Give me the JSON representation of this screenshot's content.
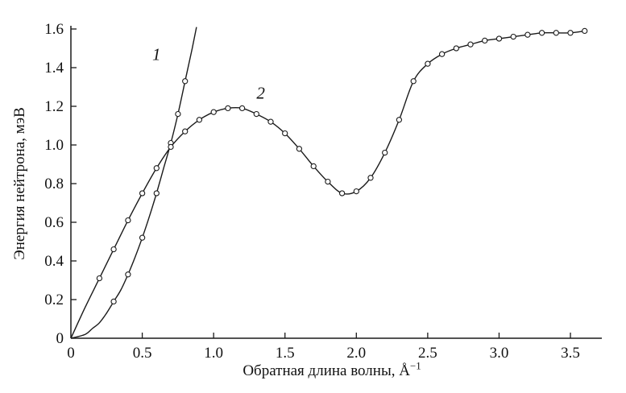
{
  "page": {
    "background": "#ffffff"
  },
  "chart_data": {
    "type": "line",
    "title": "",
    "xlabel": "Обратная длина волны, Å",
    "xlabel_sup": "−1",
    "ylabel": "Энергия нейтрона, мэВ",
    "xlim": [
      0,
      3.72
    ],
    "ylim": [
      0,
      1.6
    ],
    "grid": false,
    "legend": "none",
    "line_color": "#1a1a1a",
    "marker_style": "open-circle",
    "xticks": {
      "values": [
        0,
        0.5,
        1.0,
        1.5,
        2.0,
        2.5,
        3.0,
        3.5
      ],
      "labels": [
        "0",
        "0.5",
        "1.0",
        "1.5",
        "2.0",
        "2.5",
        "3.0",
        "3.5"
      ]
    },
    "yticks": {
      "values": [
        0,
        0.2,
        0.4,
        0.6,
        0.8,
        1.0,
        1.2,
        1.4,
        1.6
      ],
      "labels": [
        "0",
        "0.2",
        "0.4",
        "0.6",
        "0.8",
        "1.0",
        "1.2",
        "1.4",
        "1.6"
      ]
    },
    "series": [
      {
        "name": "1",
        "line": [
          [
            0,
            0
          ],
          [
            0.1,
            0.02
          ],
          [
            0.15,
            0.05
          ],
          [
            0.2,
            0.08
          ],
          [
            0.25,
            0.13
          ],
          [
            0.3,
            0.19
          ],
          [
            0.35,
            0.25
          ],
          [
            0.4,
            0.33
          ],
          [
            0.45,
            0.42
          ],
          [
            0.5,
            0.52
          ],
          [
            0.55,
            0.63
          ],
          [
            0.6,
            0.75
          ],
          [
            0.65,
            0.88
          ],
          [
            0.7,
            1.01
          ],
          [
            0.75,
            1.16
          ],
          [
            0.8,
            1.33
          ],
          [
            0.85,
            1.5
          ],
          [
            0.88,
            1.61
          ]
        ],
        "markers": [
          [
            0.3,
            0.19
          ],
          [
            0.4,
            0.33
          ],
          [
            0.5,
            0.52
          ],
          [
            0.6,
            0.75
          ],
          [
            0.7,
            1.01
          ],
          [
            0.75,
            1.16
          ],
          [
            0.8,
            1.33
          ]
        ]
      },
      {
        "name": "2",
        "line": [
          [
            0,
            0
          ],
          [
            0.1,
            0.16
          ],
          [
            0.2,
            0.31
          ],
          [
            0.3,
            0.46
          ],
          [
            0.4,
            0.61
          ],
          [
            0.5,
            0.75
          ],
          [
            0.6,
            0.88
          ],
          [
            0.7,
            0.99
          ],
          [
            0.8,
            1.07
          ],
          [
            0.9,
            1.13
          ],
          [
            1.0,
            1.17
          ],
          [
            1.1,
            1.19
          ],
          [
            1.2,
            1.19
          ],
          [
            1.3,
            1.16
          ],
          [
            1.4,
            1.12
          ],
          [
            1.5,
            1.06
          ],
          [
            1.6,
            0.98
          ],
          [
            1.7,
            0.89
          ],
          [
            1.8,
            0.81
          ],
          [
            1.9,
            0.75
          ],
          [
            2.0,
            0.76
          ],
          [
            2.1,
            0.83
          ],
          [
            2.2,
            0.96
          ],
          [
            2.3,
            1.13
          ],
          [
            2.4,
            1.33
          ],
          [
            2.5,
            1.42
          ],
          [
            2.6,
            1.47
          ],
          [
            2.7,
            1.5
          ],
          [
            2.8,
            1.52
          ],
          [
            2.9,
            1.54
          ],
          [
            3.0,
            1.55
          ],
          [
            3.1,
            1.56
          ],
          [
            3.2,
            1.57
          ],
          [
            3.3,
            1.58
          ],
          [
            3.4,
            1.58
          ],
          [
            3.5,
            1.58
          ],
          [
            3.6,
            1.59
          ]
        ],
        "markers": [
          [
            0.2,
            0.31
          ],
          [
            0.3,
            0.46
          ],
          [
            0.4,
            0.61
          ],
          [
            0.5,
            0.75
          ],
          [
            0.6,
            0.88
          ],
          [
            0.7,
            0.99
          ],
          [
            0.8,
            1.07
          ],
          [
            0.9,
            1.13
          ],
          [
            1.0,
            1.17
          ],
          [
            1.1,
            1.19
          ],
          [
            1.2,
            1.19
          ],
          [
            1.3,
            1.16
          ],
          [
            1.4,
            1.12
          ],
          [
            1.5,
            1.06
          ],
          [
            1.6,
            0.98
          ],
          [
            1.7,
            0.89
          ],
          [
            1.8,
            0.81
          ],
          [
            1.9,
            0.75
          ],
          [
            2.0,
            0.76
          ],
          [
            2.1,
            0.83
          ],
          [
            2.2,
            0.96
          ],
          [
            2.3,
            1.13
          ],
          [
            2.4,
            1.33
          ],
          [
            2.5,
            1.42
          ],
          [
            2.6,
            1.47
          ],
          [
            2.7,
            1.5
          ],
          [
            2.8,
            1.52
          ],
          [
            2.9,
            1.54
          ],
          [
            3.0,
            1.55
          ],
          [
            3.1,
            1.56
          ],
          [
            3.2,
            1.57
          ],
          [
            3.3,
            1.58
          ],
          [
            3.4,
            1.58
          ],
          [
            3.5,
            1.58
          ],
          [
            3.6,
            1.59
          ]
        ]
      }
    ],
    "annotations": [
      {
        "text": "1",
        "x": 0.6,
        "y": 1.44
      },
      {
        "text": "2",
        "x": 1.33,
        "y": 1.24
      }
    ]
  }
}
